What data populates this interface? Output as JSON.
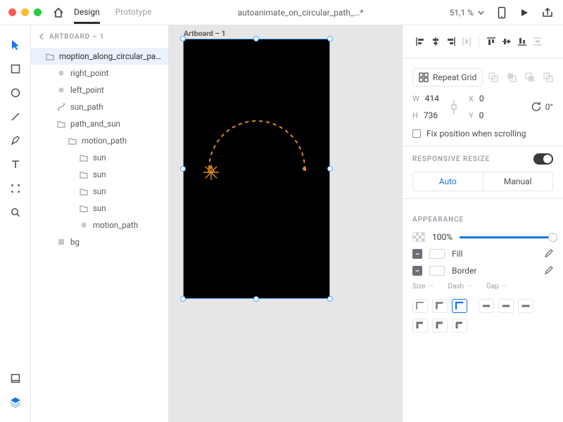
{
  "titlebar": {
    "tabs": {
      "design": "Design",
      "prototype": "Prototype",
      "active": "design"
    },
    "document": "autoanimate_on_circular_path_…*",
    "zoom": "51,1 %"
  },
  "layers": {
    "breadcrumb": "ARTBOARD – 1",
    "items": [
      {
        "indent": 0,
        "icon": "folder",
        "label": "moption_along_circular_pa…",
        "selected": true
      },
      {
        "indent": 1,
        "icon": "circle",
        "label": "right_point"
      },
      {
        "indent": 1,
        "icon": "circle",
        "label": "left_point"
      },
      {
        "indent": 1,
        "icon": "path",
        "label": "sun_path"
      },
      {
        "indent": 1,
        "icon": "folder",
        "label": "path_and_sun"
      },
      {
        "indent": 2,
        "icon": "folder",
        "label": "motion_path"
      },
      {
        "indent": 3,
        "icon": "folder",
        "label": "sun"
      },
      {
        "indent": 3,
        "icon": "folder",
        "label": "sun"
      },
      {
        "indent": 3,
        "icon": "folder",
        "label": "sun"
      },
      {
        "indent": 3,
        "icon": "folder",
        "label": "sun"
      },
      {
        "indent": 3,
        "icon": "circle",
        "label": "motion_path"
      },
      {
        "indent": 1,
        "icon": "rect",
        "label": "bg"
      }
    ]
  },
  "canvas": {
    "artboard_label": "Artboard – 1",
    "artboard": {
      "bg": "#000000"
    },
    "arc": {
      "stroke": "#e28b1a",
      "dash": "5,5",
      "strokeWidth": 2
    },
    "sun": {
      "color": "#e28b1a"
    }
  },
  "inspector": {
    "repeat_grid": "Repeat Grid",
    "dimensions": {
      "w_label": "W",
      "w": "414",
      "h_label": "H",
      "h": "736",
      "x_label": "X",
      "x": "0",
      "y_label": "Y",
      "y": "0",
      "rotate": "0°"
    },
    "fix_position": "Fix position when scrolling",
    "responsive": "RESPONSIVE RESIZE",
    "seg": {
      "auto": "Auto",
      "manual": "Manual",
      "active": "auto"
    },
    "appearance": "APPEARANCE",
    "opacity": "100%",
    "fill": "Fill",
    "border": "Border",
    "size_row": {
      "size": "Size",
      "dash": "Dash",
      "gap": "Gap",
      "dashv": "—"
    }
  }
}
